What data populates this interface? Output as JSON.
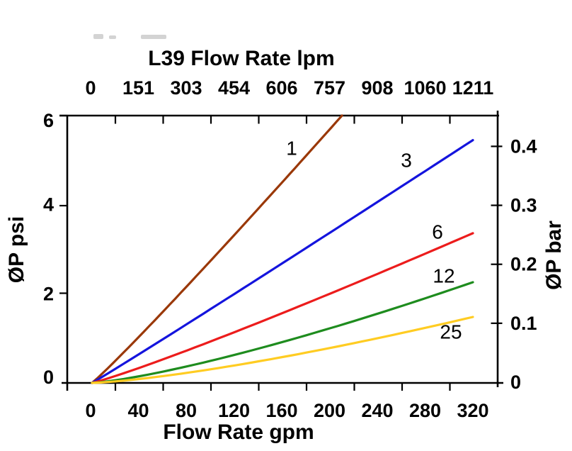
{
  "chart_data": {
    "type": "line",
    "title_top": "L39 Flow Rate lpm",
    "xlabel_bottom": "Flow Rate gpm",
    "ylabel_left": "ØP psi",
    "ylabel_right": "ØP bar",
    "x_gpm_ticks": [
      "0",
      "40",
      "80",
      "120",
      "160",
      "200",
      "240",
      "280",
      "320"
    ],
    "x_lpm_ticks": [
      "0",
      "151",
      "303",
      "454",
      "606",
      "757",
      "908",
      "1060",
      "1211"
    ],
    "y_psi_ticks": [
      "0",
      "2",
      "4",
      "6"
    ],
    "y_bar_ticks": [
      "0",
      "0.1",
      "0.2",
      "0.3",
      "0.4"
    ],
    "axis_ranges": {
      "x_gpm": [
        0,
        320
      ],
      "x_lpm": [
        0,
        1211
      ],
      "y_psi": [
        0,
        6
      ],
      "y_bar": [
        0,
        0.414
      ]
    },
    "grid": false,
    "legend": "inline-curve-labels",
    "series": [
      {
        "label": "1",
        "color": "#9a3808",
        "q_max_gpm": 210,
        "p_end_psi": 6.0,
        "exponent": 1.05,
        "points_gpm_psi": [
          [
            0,
            0
          ],
          [
            40,
            1.05
          ],
          [
            80,
            2.18
          ],
          [
            120,
            3.33
          ],
          [
            160,
            4.51
          ],
          [
            200,
            5.7
          ],
          [
            210,
            6.0
          ]
        ]
      },
      {
        "label": "3",
        "color": "#1414dd",
        "q_max_gpm": 320,
        "p_end_psi": 5.45,
        "exponent": 1.02,
        "points_gpm_psi": [
          [
            0,
            0
          ],
          [
            80,
            1.32
          ],
          [
            160,
            2.69
          ],
          [
            240,
            4.06
          ],
          [
            320,
            5.45
          ]
        ]
      },
      {
        "label": "6",
        "color": "#ec1c1c",
        "q_max_gpm": 320,
        "p_end_psi": 3.36,
        "exponent": 1.1,
        "points_gpm_psi": [
          [
            0,
            0
          ],
          [
            80,
            0.73
          ],
          [
            160,
            1.57
          ],
          [
            240,
            2.45
          ],
          [
            320,
            3.36
          ]
        ]
      },
      {
        "label": "12",
        "color": "#1e8c1e",
        "q_max_gpm": 320,
        "p_end_psi": 2.26,
        "exponent": 1.3,
        "points_gpm_psi": [
          [
            0,
            0
          ],
          [
            80,
            0.37
          ],
          [
            160,
            0.92
          ],
          [
            240,
            1.55
          ],
          [
            320,
            2.26
          ]
        ]
      },
      {
        "label": "25",
        "color": "#ffcc22",
        "q_max_gpm": 320,
        "p_end_psi": 1.48,
        "exponent": 1.35,
        "points_gpm_psi": [
          [
            0,
            0
          ],
          [
            80,
            0.23
          ],
          [
            160,
            0.58
          ],
          [
            240,
            1.0
          ],
          [
            320,
            1.48
          ]
        ]
      }
    ],
    "colors": {
      "axis": "#000000",
      "text": "#000000",
      "background": "#ffffff",
      "artifact": "#cbcbcb"
    }
  }
}
